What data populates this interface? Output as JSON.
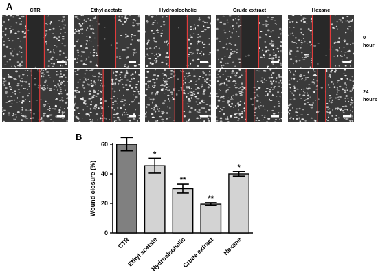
{
  "panel_a": {
    "letter": "A",
    "columns": [
      "CTR",
      "Ethyl acetate",
      "Hydroalcoholic",
      "Crude extract",
      "Hexane"
    ],
    "rows": [
      "0 hour",
      "24 hours"
    ]
  },
  "panel_b": {
    "letter": "B"
  },
  "chart_data": {
    "type": "bar",
    "categories": [
      "CTR",
      "Ethyl acetate",
      "Hydroalcoholic",
      "Crude extract",
      "Hexane"
    ],
    "values": [
      60,
      45.5,
      30,
      19.5,
      40
    ],
    "errors": [
      4.5,
      5,
      3,
      1,
      1.5
    ],
    "significance": [
      "",
      "*",
      "**",
      "**",
      "*"
    ],
    "bar_colors": [
      "#808080",
      "#d3d3d3",
      "#d3d3d3",
      "#d3d3d3",
      "#d3d3d3"
    ],
    "xlabel": "",
    "ylabel": "Wound closure (%)",
    "ylim": [
      0,
      60
    ],
    "yticks": [
      0,
      20,
      40,
      60
    ],
    "grid": false
  }
}
